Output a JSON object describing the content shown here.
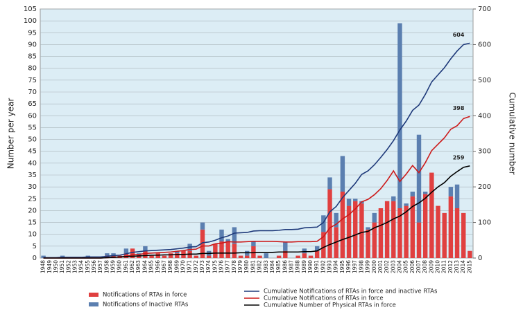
{
  "chart_data": {
    "type": "bar",
    "stacked": true,
    "y_label": "Number per year",
    "y2_label": "Cumulative number",
    "categories": [
      "1948",
      "1949",
      "1950",
      "1951",
      "1952",
      "1953",
      "1954",
      "1955",
      "1956",
      "1957",
      "1958",
      "1959",
      "1960",
      "1961",
      "1962",
      "1963",
      "1964",
      "1965",
      "1966",
      "1967",
      "1968",
      "1969",
      "1970",
      "1971",
      "1972",
      "1973",
      "1974",
      "1975",
      "1976",
      "1977",
      "1978",
      "1979",
      "1980",
      "1981",
      "1982",
      "1983",
      "1984",
      "1985",
      "1986",
      "1987",
      "1988",
      "1989",
      "1990",
      "1991",
      "1992",
      "1993",
      "1994",
      "1995",
      "1996",
      "1997",
      "1998",
      "1999",
      "2000",
      "2001",
      "2002",
      "2003",
      "2004",
      "2005",
      "2006",
      "2007",
      "2008",
      "2009",
      "2010",
      "2011",
      "2012",
      "2013",
      "2014",
      "2015"
    ],
    "ylim": [
      0,
      105
    ],
    "yticks": [
      0,
      5,
      10,
      15,
      20,
      25,
      30,
      35,
      40,
      45,
      50,
      55,
      60,
      65,
      70,
      75,
      80,
      85,
      90,
      95,
      100,
      105
    ],
    "y2lim": [
      0,
      700
    ],
    "y2ticks": [
      0,
      100,
      200,
      300,
      400,
      500,
      600,
      700
    ],
    "grid": true,
    "series": [
      {
        "name": "Notifications of RTAs in force",
        "color": "#e04040",
        "values": [
          0,
          0,
          0,
          0,
          0,
          0,
          0,
          0,
          0,
          0,
          1,
          1,
          1,
          2,
          4,
          1,
          3,
          1,
          2,
          1,
          2,
          2,
          3,
          3,
          1,
          12,
          1,
          6,
          7,
          7,
          6,
          1,
          1,
          5,
          1,
          0,
          0,
          1,
          3,
          0,
          1,
          2,
          1,
          3,
          11,
          29,
          13,
          28,
          22,
          24,
          23,
          12,
          15,
          21,
          24,
          24,
          21,
          22,
          26,
          15,
          27,
          36,
          22,
          19,
          26,
          21,
          19,
          3
        ]
      },
      {
        "name": "Notifications of Inactive RTAs",
        "color": "#5b7fb0",
        "values": [
          1,
          0,
          0,
          1,
          0,
          0,
          0,
          1,
          0,
          0,
          1,
          1,
          0,
          2,
          0,
          1,
          2,
          0,
          0,
          0,
          0,
          1,
          0,
          3,
          0,
          3,
          2,
          0,
          5,
          1,
          7,
          0,
          2,
          2,
          0,
          2,
          0,
          0,
          4,
          0,
          0,
          2,
          0,
          2,
          7,
          5,
          6,
          15,
          3,
          1,
          1,
          1,
          4,
          0,
          0,
          2,
          78,
          1,
          2,
          37,
          1,
          0,
          0,
          0,
          4,
          10,
          0,
          0
        ]
      },
      {
        "name": "Cumulative Notifications of RTAs in force and inactive RTAs",
        "color": "#1f3a7a",
        "axis": "y2",
        "values": [
          1,
          1,
          1,
          2,
          2,
          2,
          2,
          3,
          3,
          3,
          5,
          7,
          8,
          12,
          16,
          18,
          20,
          21,
          22,
          23,
          24,
          26,
          28,
          31,
          32,
          43,
          45,
          50,
          57,
          62,
          70,
          71,
          72,
          76,
          77,
          77,
          77,
          78,
          80,
          80,
          81,
          85,
          86,
          87,
          100,
          130,
          145,
          170,
          190,
          210,
          235,
          245,
          262,
          283,
          305,
          330,
          360,
          385,
          415,
          430,
          460,
          495,
          515,
          535,
          560,
          582,
          600,
          604
        ]
      },
      {
        "name": "Cumulative Notifications of RTAs in force",
        "color": "#cc1a1a",
        "axis": "y2",
        "values": [
          0,
          0,
          0,
          0,
          0,
          0,
          0,
          0,
          0,
          0,
          1,
          2,
          3,
          5,
          9,
          10,
          13,
          14,
          15,
          16,
          17,
          19,
          21,
          24,
          25,
          34,
          34,
          40,
          42,
          46,
          45,
          45,
          46,
          47,
          47,
          47,
          47,
          46,
          45,
          45,
          46,
          46,
          46,
          47,
          60,
          85,
          95,
          110,
          122,
          138,
          158,
          165,
          178,
          195,
          218,
          245,
          215,
          236,
          260,
          240,
          268,
          302,
          320,
          338,
          362,
          372,
          392,
          398
        ]
      },
      {
        "name": "Cumulative Number of Physical RTAs in force",
        "color": "#000000",
        "axis": "y2",
        "values": [
          0,
          0,
          0,
          0,
          0,
          0,
          0,
          0,
          0,
          0,
          1,
          2,
          3,
          4,
          5,
          6,
          7,
          8,
          8,
          9,
          9,
          10,
          10,
          11,
          11,
          13,
          13,
          14,
          14,
          14,
          14,
          15,
          15,
          15,
          16,
          16,
          16,
          17,
          17,
          17,
          17,
          18,
          18,
          20,
          30,
          38,
          45,
          52,
          58,
          65,
          72,
          75,
          85,
          92,
          100,
          110,
          118,
          130,
          145,
          155,
          168,
          185,
          200,
          212,
          230,
          243,
          255,
          259
        ]
      }
    ]
  }
}
